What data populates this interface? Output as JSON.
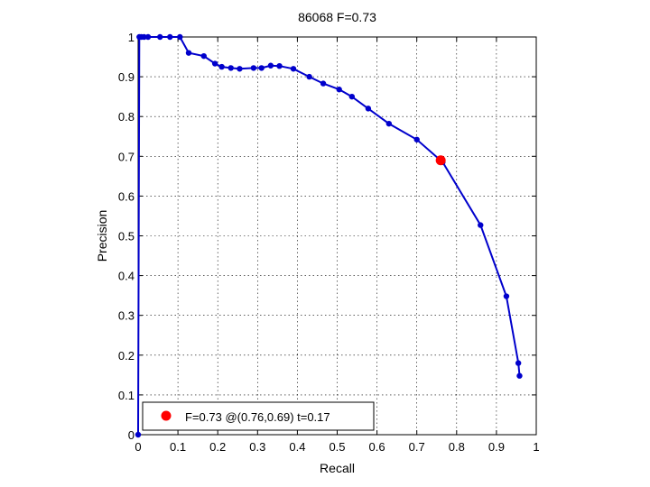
{
  "chart_data": {
    "type": "line",
    "title": "86068 F=0.73",
    "xlabel": "Recall",
    "ylabel": "Precision",
    "xlim": [
      0,
      1
    ],
    "ylim": [
      0,
      1
    ],
    "x_ticks": [
      "0",
      "0.1",
      "0.2",
      "0.3",
      "0.4",
      "0.5",
      "0.6",
      "0.7",
      "0.8",
      "0.9",
      "1"
    ],
    "y_ticks": [
      "0",
      "0.1",
      "0.2",
      "0.3",
      "0.4",
      "0.5",
      "0.6",
      "0.7",
      "0.8",
      "0.9",
      "1"
    ],
    "grid": true,
    "series": [
      {
        "color": "#0000cc",
        "x": [
          0,
          0.003,
          0.008,
          0.015,
          0.025,
          0.055,
          0.08,
          0.105,
          0.127,
          0.165,
          0.193,
          0.21,
          0.233,
          0.255,
          0.29,
          0.31,
          0.333,
          0.355,
          0.39,
          0.43,
          0.465,
          0.505,
          0.537,
          0.578,
          0.63,
          0.7,
          0.765,
          0.86,
          0.925,
          0.955,
          0.958
        ],
        "y": [
          0,
          1,
          1,
          1,
          1,
          1,
          1,
          1,
          0.96,
          0.952,
          0.933,
          0.925,
          0.922,
          0.92,
          0.922,
          0.922,
          0.928,
          0.927,
          0.92,
          0.9,
          0.883,
          0.868,
          0.85,
          0.82,
          0.782,
          0.742,
          0.685,
          0.527,
          0.348,
          0.18,
          0.148
        ]
      }
    ],
    "highlight": {
      "x": 0.76,
      "y": 0.69,
      "color": "#ff0000"
    },
    "legend": {
      "position": "bottom-left",
      "text": "F=0.73 @(0.76,0.69) t=0.17"
    }
  }
}
